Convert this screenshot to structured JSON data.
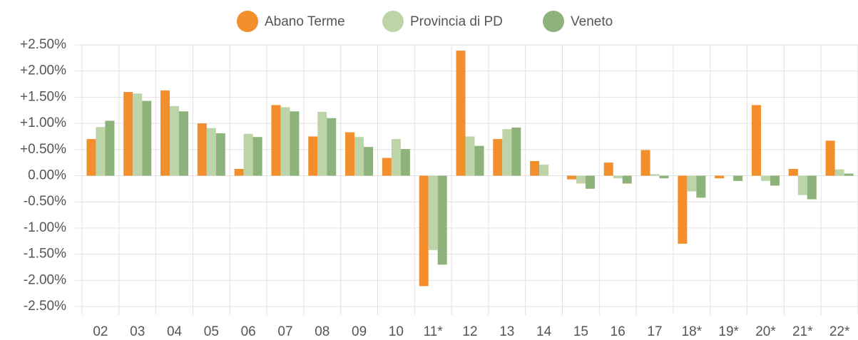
{
  "chart_data": {
    "type": "bar",
    "categories": [
      "02",
      "03",
      "04",
      "05",
      "06",
      "07",
      "08",
      "09",
      "10",
      "11*",
      "12",
      "13",
      "14",
      "15",
      "16",
      "17",
      "18*",
      "19*",
      "20*",
      "21*",
      "22*"
    ],
    "series": [
      {
        "name": "Abano Terme",
        "color": "#f28e2b",
        "values": [
          0.7,
          1.6,
          1.63,
          1.0,
          0.13,
          1.35,
          0.75,
          0.83,
          0.34,
          -2.11,
          2.39,
          0.7,
          0.28,
          -0.07,
          0.25,
          0.49,
          -1.3,
          -0.05,
          1.35,
          0.13,
          0.67
        ]
      },
      {
        "name": "Provincia di PD",
        "color": "#bdd4a9",
        "values": [
          0.93,
          1.57,
          1.33,
          0.91,
          0.8,
          1.31,
          1.22,
          0.74,
          0.7,
          -1.42,
          0.75,
          0.89,
          0.21,
          -0.15,
          -0.05,
          0.03,
          -0.3,
          0.0,
          -0.1,
          -0.37,
          0.12
        ]
      },
      {
        "name": "Veneto",
        "color": "#8db37a",
        "values": [
          1.05,
          1.43,
          1.23,
          0.81,
          0.74,
          1.23,
          1.1,
          0.55,
          0.51,
          -1.7,
          0.57,
          0.92,
          0.0,
          -0.25,
          -0.15,
          -0.05,
          -0.42,
          -0.1,
          -0.19,
          -0.45,
          0.04
        ]
      }
    ],
    "ylim": [
      -2.5,
      2.5
    ],
    "yticks": [
      {
        "value": 2.5,
        "label": "+2.50%"
      },
      {
        "value": 2.0,
        "label": "+2.00%"
      },
      {
        "value": 1.5,
        "label": "+1.50%"
      },
      {
        "value": 1.0,
        "label": "+1.00%"
      },
      {
        "value": 0.5,
        "label": "+0.50%"
      },
      {
        "value": 0,
        "label": "0.00%"
      },
      {
        "value": -0.5,
        "label": "-0.50%"
      },
      {
        "value": -1.0,
        "label": "-1.00%"
      },
      {
        "value": -1.5,
        "label": "-1.50%"
      },
      {
        "value": -2.0,
        "label": "-2.00%"
      },
      {
        "value": -2.5,
        "label": "-2.50%"
      }
    ],
    "grid": true,
    "legend": "top"
  }
}
